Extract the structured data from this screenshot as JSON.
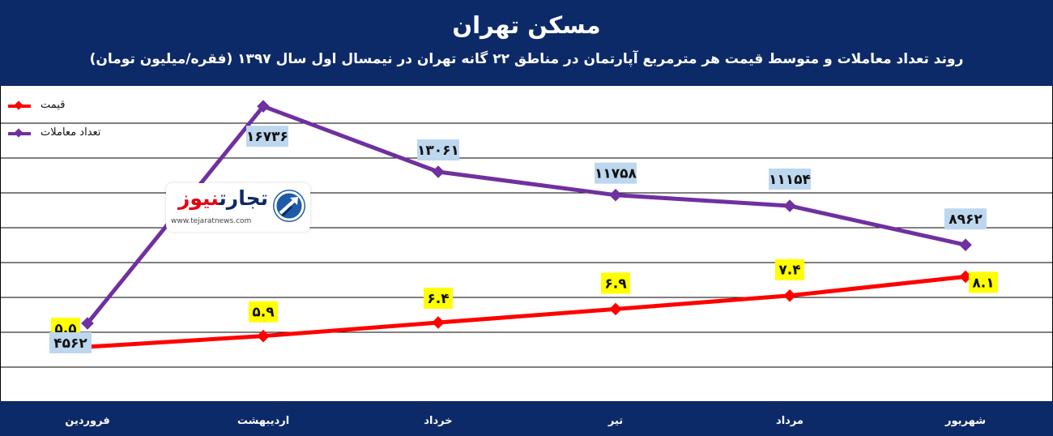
{
  "title": "مسکن تهران",
  "subtitle": "روند تعداد معاملات و متوسط قیمت هر مترمربع آپارتمان در مناطق ۲۲ گانه تهران در نیمسال اول سال ۱۳۹۷ (فقره/میلیون تومان)",
  "logo": {
    "name_part1": "تجارت",
    "name_part2": "نیوز",
    "url": "www.tejaratnews.com",
    "icon": "arrow-circle-logo-icon"
  },
  "colors": {
    "header_bg": "#0d2a68",
    "price": "#ff0000",
    "transactions": "#7030a0",
    "price_label_bg": "#ffff00",
    "transactions_label_bg": "#bdd7ee",
    "grid": "#000000"
  },
  "chart_data": {
    "type": "line",
    "categories": [
      "فروردین",
      "اردیبهشت",
      "خرداد",
      "تیر",
      "مرداد",
      "شهریور"
    ],
    "title": "مسکن تهران",
    "legend": "top-left",
    "grid": true,
    "series": [
      {
        "name": "قیمت",
        "values": [
          5.5,
          5.9,
          6.4,
          6.9,
          7.4,
          8.1
        ],
        "labels": [
          "۵.۵",
          "۵.۹",
          "۶.۴",
          "۶.۹",
          "۷.۴",
          "۸.۱"
        ],
        "color": "#ff0000"
      },
      {
        "name": "تعداد معاملات",
        "values": [
          4562,
          16736,
          13061,
          11758,
          11154,
          8962
        ],
        "labels": [
          "۴۵۶۲",
          "۱۶۷۳۶",
          "۱۳۰۶۱",
          "۱۱۷۵۸",
          "۱۱۱۵۴",
          "۸۹۶۲"
        ],
        "color": "#7030a0"
      }
    ]
  }
}
